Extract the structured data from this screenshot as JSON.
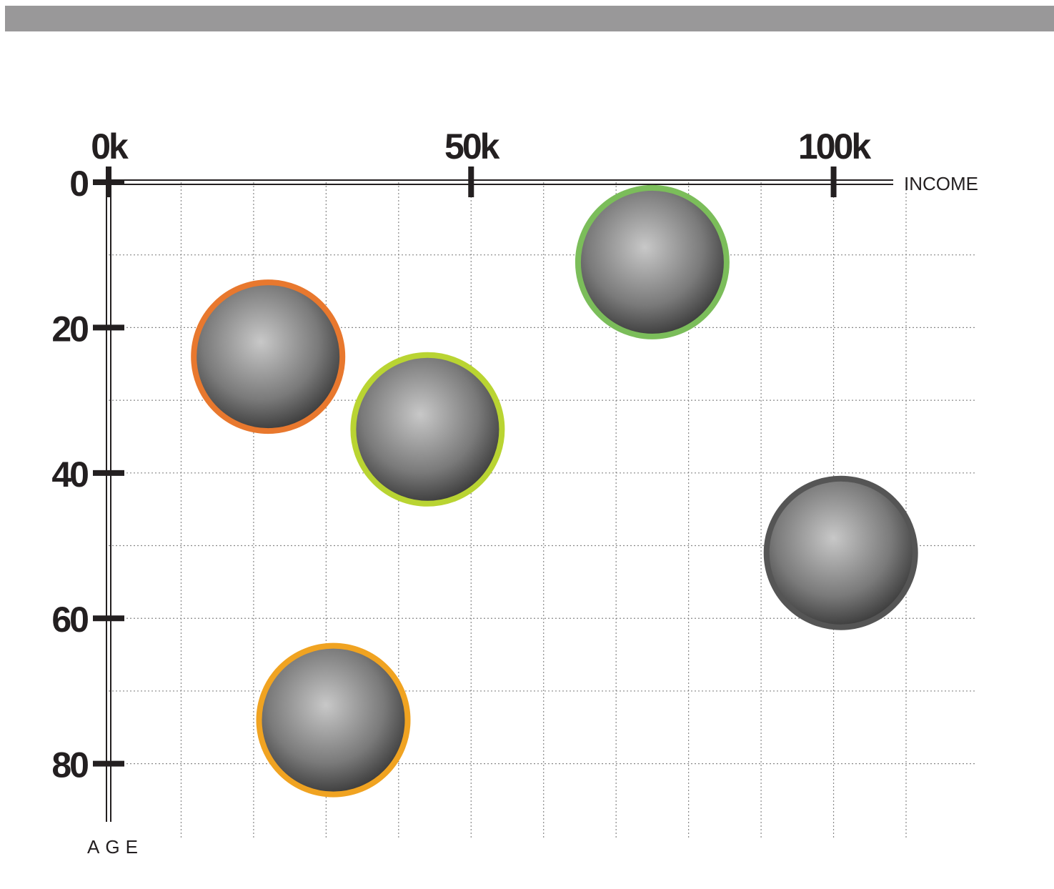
{
  "chart_data": {
    "type": "scatter",
    "x_label": "INCOME",
    "y_label": "AGE",
    "x": [
      22000,
      44000,
      75000,
      101000,
      31000
    ],
    "values": [
      24,
      34,
      11,
      51,
      74
    ],
    "colors": [
      "#e8782e",
      "#b9d432",
      "#7bbd5a",
      "#555555",
      "#f0a321"
    ],
    "xlim": [
      0,
      110000
    ],
    "xticks": [
      {
        "value": 0,
        "label": "0k"
      },
      {
        "value": 50000,
        "label": "50k"
      },
      {
        "value": 100000,
        "label": "100k"
      }
    ],
    "ylim": [
      0,
      88
    ],
    "y_inverted": true,
    "yticks": [
      0,
      20,
      40,
      60,
      80
    ],
    "x_gridlines": [
      10000,
      20000,
      30000,
      40000,
      50000,
      60000,
      70000,
      80000,
      90000,
      100000,
      110000
    ],
    "y_gridlines": [
      10,
      20,
      30,
      40,
      50,
      60,
      70,
      80
    ],
    "grid": true
  }
}
